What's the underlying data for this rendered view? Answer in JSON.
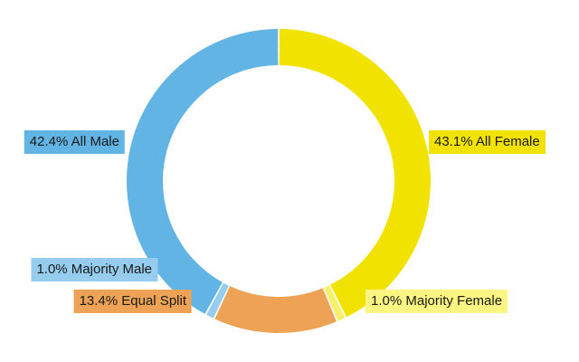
{
  "chart_data": {
    "type": "pie",
    "donut": true,
    "title": "",
    "slices": [
      {
        "label": "All Female",
        "value": 43.1,
        "text": "43.1% All Female",
        "color": "#f2e200",
        "label_bg": "#f2e200",
        "side": "right"
      },
      {
        "label": "Majority Female",
        "value": 1.0,
        "text": "1.0% Majority Female",
        "color": "#f7ef6e",
        "label_bg": "#fbf582",
        "side": "right"
      },
      {
        "label": "Equal Split",
        "value": 13.4,
        "text": "13.4% Equal Split",
        "color": "#eda255",
        "label_bg": "#eda255",
        "side": "left"
      },
      {
        "label": "Majority Male",
        "value": 1.0,
        "text": "1.0% Majority Male",
        "color": "#96cdee",
        "label_bg": "#96cdee",
        "side": "left"
      },
      {
        "label": "All Male",
        "value": 42.4,
        "text": "42.4% All Male",
        "color": "#62b4e4",
        "label_bg": "#62b4e4",
        "side": "left"
      }
    ],
    "legend": "none"
  }
}
